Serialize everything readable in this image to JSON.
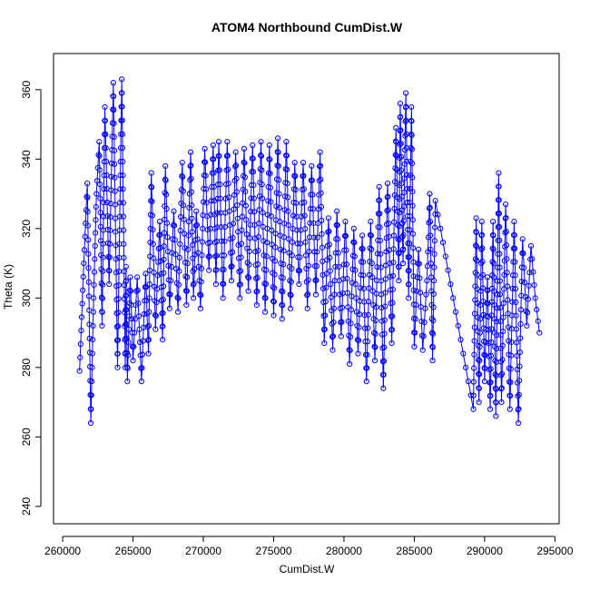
{
  "chart_data": {
    "type": "line",
    "title": "ATOM4 Northbound CumDist.W",
    "xlabel": "CumDist.W",
    "ylabel": "Theta (K)",
    "xlim": [
      260000,
      295000
    ],
    "ylim": [
      240,
      370
    ],
    "x_ticks": [
      260000,
      265000,
      270000,
      275000,
      280000,
      285000,
      290000,
      295000
    ],
    "y_ticks": [
      240,
      260,
      280,
      300,
      320,
      340,
      360
    ],
    "grid": false,
    "legend": "none",
    "style": "points connected by lines (type = 'b')",
    "color": "#0000ff",
    "x": [
      261200,
      261500,
      261750,
      262000,
      262200,
      262400,
      262600,
      262800,
      263000,
      263300,
      263600,
      263900,
      264200,
      264450,
      264500,
      264600,
      264800,
      265000,
      265300,
      265600,
      265900,
      266100,
      266300,
      266600,
      266900,
      267100,
      267300,
      267600,
      267900,
      268200,
      268500,
      268800,
      269100,
      269300,
      269500,
      269800,
      270100,
      270400,
      270700,
      270900,
      271100,
      271400,
      271700,
      272000,
      272300,
      272600,
      272900,
      273200,
      273500,
      273800,
      274100,
      274400,
      274700,
      275000,
      275300,
      275600,
      275900,
      276200,
      276500,
      276800,
      277100,
      277400,
      277700,
      278000,
      278300,
      278600,
      278900,
      279200,
      279500,
      279800,
      280100,
      280400,
      280700,
      281000,
      281300,
      281600,
      281900,
      282200,
      282500,
      282800,
      283100,
      283400,
      283700,
      283900,
      284000,
      284200,
      284400,
      284600,
      284800,
      285000,
      285300,
      285600,
      285900,
      286100,
      286300,
      286500,
      289200,
      289400,
      289600,
      289800,
      290000,
      290200,
      290400,
      290600,
      290800,
      291000,
      291200,
      291500,
      291800,
      292100,
      292400,
      292700,
      293000,
      293300,
      293600,
      293900
    ],
    "y": [
      279,
      310,
      333,
      264,
      300,
      330,
      345,
      292,
      355,
      304,
      362,
      280,
      363,
      280,
      309,
      276,
      306,
      282,
      306,
      276,
      307,
      284,
      336,
      291,
      322,
      288,
      338,
      297,
      325,
      296,
      339,
      298,
      342,
      300,
      325,
      297,
      343,
      308,
      344,
      304,
      345,
      300,
      345,
      305,
      342,
      300,
      343,
      302,
      344,
      298,
      345,
      296,
      344,
      295,
      346,
      294,
      345,
      297,
      339,
      304,
      339,
      297,
      338,
      301,
      342,
      287,
      323,
      285,
      325,
      289,
      322,
      281,
      320,
      284,
      318,
      276,
      322,
      282,
      332,
      274,
      333,
      287,
      349,
      305,
      356,
      310,
      359,
      300,
      355,
      286,
      314,
      285,
      305,
      330,
      282,
      328,
      268,
      323,
      270,
      322,
      276,
      306,
      268,
      322,
      266,
      336,
      270,
      327,
      268,
      322,
      264,
      317,
      292,
      315,
      300,
      290
    ],
    "points_per_segment_note": "values reproduce the zig-zag envelope of the plotted series"
  }
}
